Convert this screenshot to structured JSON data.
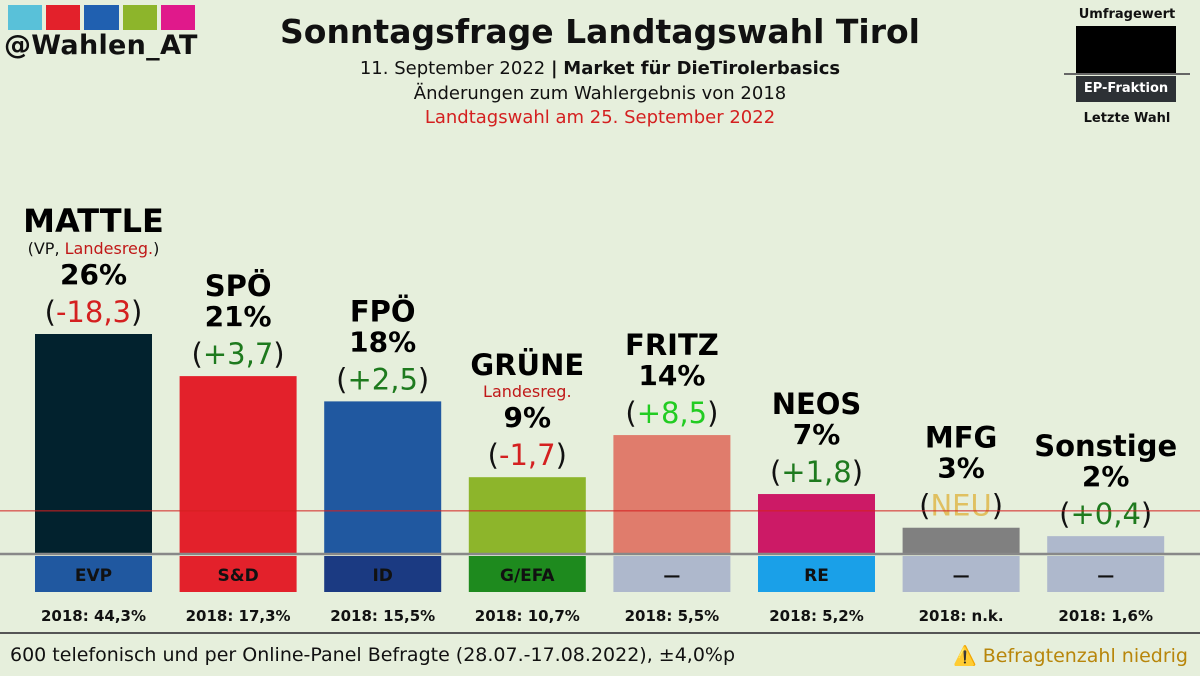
{
  "brand": "@Wahlen_AT",
  "brand_colors": [
    "#59c1d9",
    "#e3212b",
    "#2060b0",
    "#8db52b",
    "#e0198b"
  ],
  "title": "Sonntagsfrage Landtagswahl Tirol",
  "subtitle_date": "11. September 2022",
  "subtitle_sep": "|",
  "subtitle_source": "Market für DieTirolerbasics",
  "subtitle_changes": "Änderungen zum Wahlergebnis von 2018",
  "subtitle_election": "Landtagswahl am 25. September 2022",
  "legend": {
    "top": "Umfragewert",
    "ep": "EP-Fraktion",
    "bottom": "Letzte Wahl"
  },
  "footer": {
    "left": "600 telefonisch und per Online-Panel Befragte (28.07.-17.08.2022), ±4,0%p",
    "warning_icon": "⚠️",
    "right": "Befragtenzahl niedrig"
  },
  "chart_data": {
    "type": "bar",
    "ylim": [
      0,
      27
    ],
    "threshold_value": 5,
    "categories": [
      "MATTLE",
      "SPÖ",
      "FPÖ",
      "GRÜNE",
      "FRITZ",
      "NEOS",
      "MFG",
      "Sonstige"
    ],
    "values": [
      26,
      21,
      18,
      9,
      14,
      7,
      3,
      2
    ],
    "labels": [
      "26%",
      "21%",
      "18%",
      "9%",
      "14%",
      "7%",
      "3%",
      "2%"
    ],
    "changes": [
      "-18,3",
      "+3,7",
      "+2,5",
      "-1,7",
      "+8,5",
      "+1,8",
      "NEU",
      "+0,4"
    ],
    "change_colors": [
      "#d42020",
      "#1e7a1e",
      "#1e7a1e",
      "#d42020",
      "#22cc22",
      "#1e7a1e",
      "#e0c060",
      "#1e7a1e"
    ],
    "bar_colors": [
      "#02222e",
      "#e3212b",
      "#2058a0",
      "#8db52b",
      "#e07c6c",
      "#cc1a66",
      "#808080",
      "#aeb8cc"
    ],
    "notes": [
      {
        "prefix": "(VP, ",
        "highlight": "Landesreg.",
        "suffix": ")"
      },
      null,
      null,
      {
        "prefix": "",
        "highlight": "Landesreg.",
        "suffix": ""
      },
      null,
      null,
      null,
      null
    ],
    "ep_groups": [
      "EVP",
      "S&D",
      "ID",
      "G/EFA",
      "—",
      "RE",
      "—",
      "—"
    ],
    "ep_colors": [
      "#2058a0",
      "#e3212b",
      "#1b3a82",
      "#1e8a1e",
      "#aeb8cc",
      "#1aa0e8",
      "#aeb8cc",
      "#aeb8cc"
    ],
    "last_results": [
      "2018: 44,3%",
      "2018: 17,3%",
      "2018: 15,5%",
      "2018: 10,7%",
      "2018: 5,5%",
      "2018: 5,2%",
      "2018: n.k.",
      "2018: 1,6%"
    ]
  }
}
